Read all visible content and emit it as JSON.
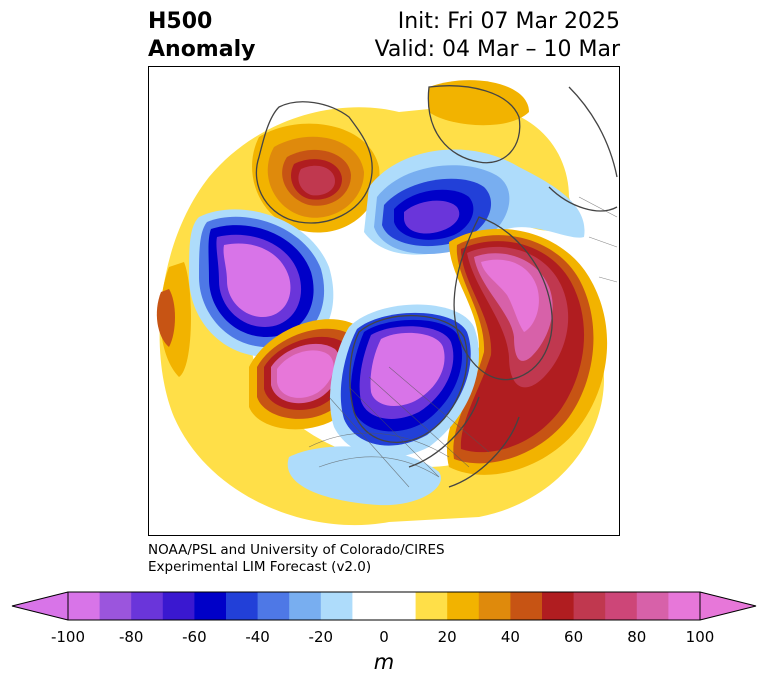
{
  "header": {
    "left_line1": "H500",
    "left_line2": "Anomaly",
    "right_line1": "Init: Fri 07 Mar 2025",
    "right_line2": "Valid: 04 Mar – 10 Mar"
  },
  "credit": {
    "line1": "NOAA/PSL and University of Colorado/CIRES",
    "line2": "Experimental LIM Forecast (v2.0)"
  },
  "colorbar": {
    "unit": "m",
    "tick_labels": [
      "-100",
      "-80",
      "-60",
      "-40",
      "-20",
      "0",
      "20",
      "40",
      "60",
      "80",
      "100"
    ],
    "levels": [
      -100,
      -90,
      -80,
      -70,
      -60,
      -50,
      -40,
      -30,
      -20,
      -10,
      10,
      20,
      30,
      40,
      50,
      60,
      70,
      80,
      90,
      100
    ],
    "colors": [
      "#d874e8",
      "#9b55dd",
      "#6a35da",
      "#3a18d0",
      "#0000c8",
      "#2240d8",
      "#4e78e6",
      "#78aef0",
      "#aedcfb",
      "#ffffff",
      "#ffdf48",
      "#f2b300",
      "#df8a0c",
      "#c75414",
      "#b01d20",
      "#c0384f",
      "#cd4678",
      "#d761a9",
      "#e777d9"
    ],
    "under_color": "#d874e8",
    "over_color": "#e777d9"
  }
}
